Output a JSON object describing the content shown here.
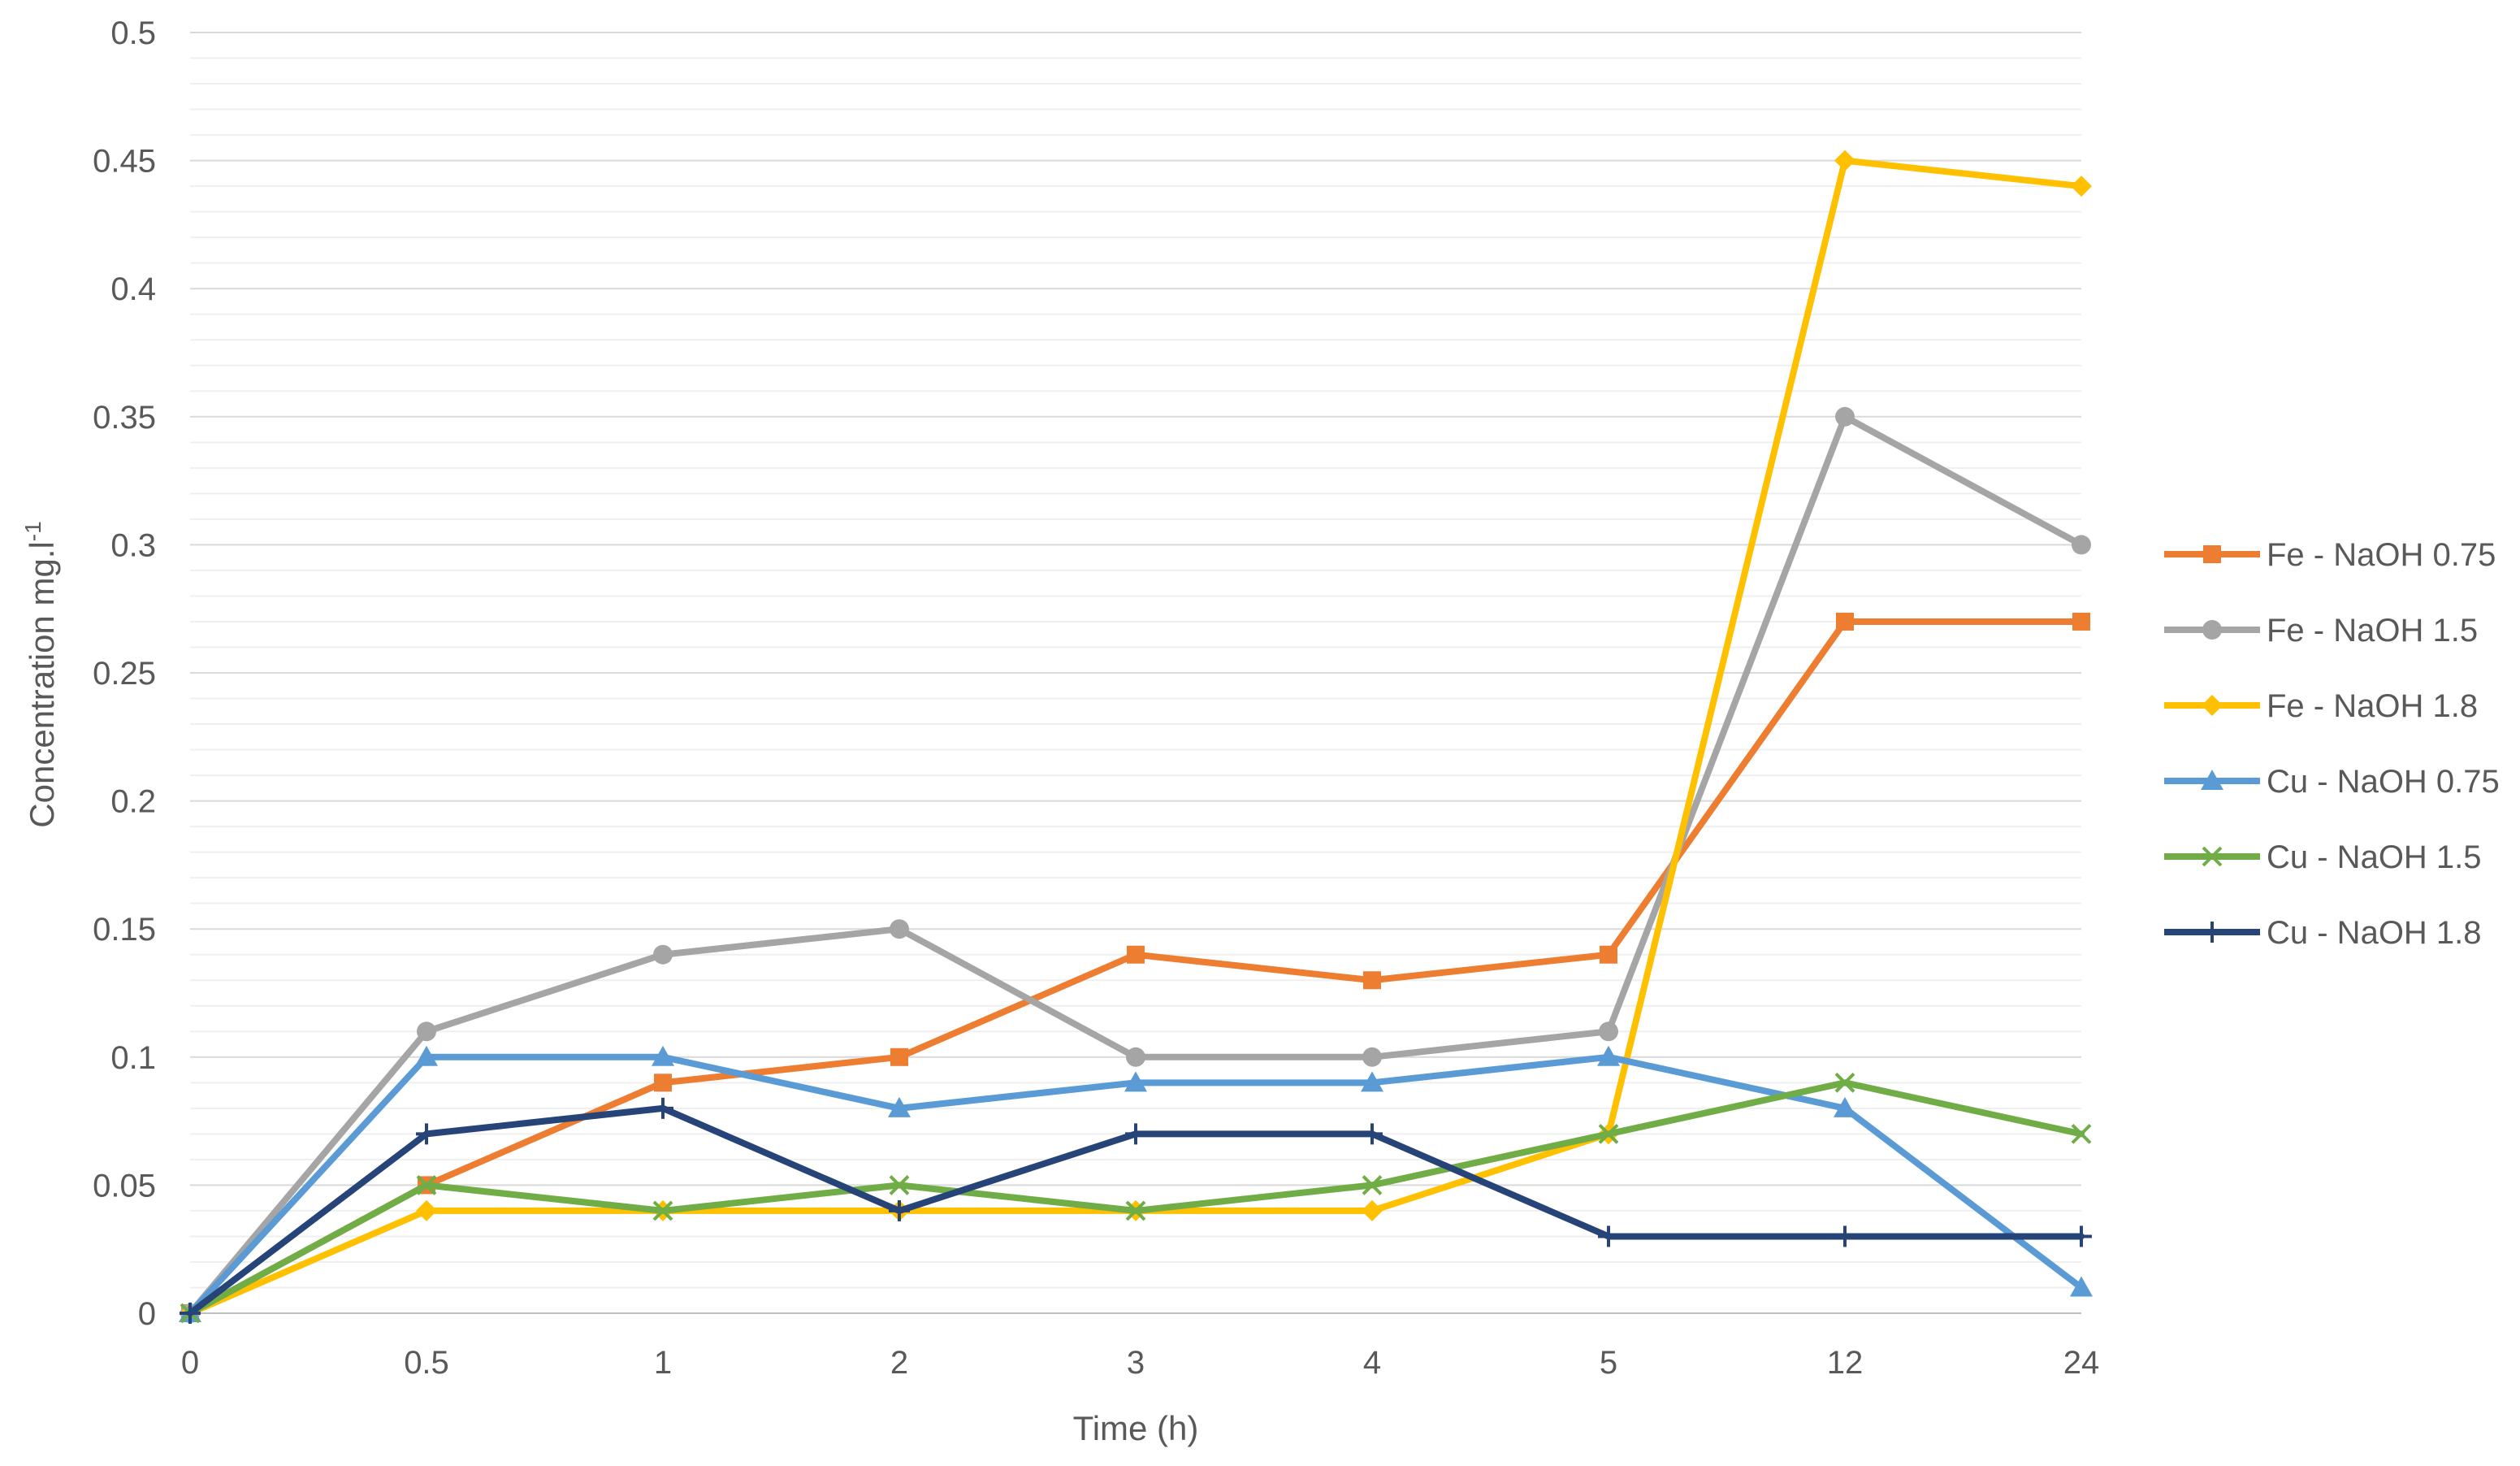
{
  "chart_data": {
    "type": "line",
    "title": "",
    "xlabel": "Time (h)",
    "ylabel": "Concentration mg.l",
    "ylabel_superscript": "-1",
    "categories": [
      "0",
      "0.5",
      "1",
      "2",
      "3",
      "4",
      "5",
      "12",
      "24"
    ],
    "ylim": [
      0,
      0.5
    ],
    "yticks": [
      "0",
      "0.05",
      "0.1",
      "0.15",
      "0.2",
      "0.25",
      "0.3",
      "0.35",
      "0.4",
      "0.45",
      "0.5"
    ],
    "grid": "horizontal major and minor",
    "legend_position": "right",
    "series": [
      {
        "name": "Fe - NaOH 0.75",
        "color": "#ED7D31",
        "marker": "square",
        "values": [
          0,
          0.05,
          0.09,
          0.1,
          0.14,
          0.13,
          0.14,
          0.27,
          0.27
        ]
      },
      {
        "name": "Fe - NaOH 1.5",
        "color": "#A5A5A5",
        "marker": "circle",
        "values": [
          0,
          0.11,
          0.14,
          0.15,
          0.1,
          0.1,
          0.11,
          0.35,
          0.3
        ]
      },
      {
        "name": "Fe - NaOH 1.8",
        "color": "#FFC000",
        "marker": "diamond",
        "values": [
          0,
          0.04,
          0.04,
          0.04,
          0.04,
          0.04,
          0.07,
          0.45,
          0.44
        ]
      },
      {
        "name": "Cu - NaOH 0.75",
        "color": "#5B9BD5",
        "marker": "triangle",
        "values": [
          0,
          0.1,
          0.1,
          0.08,
          0.09,
          0.09,
          0.1,
          0.08,
          0.01
        ]
      },
      {
        "name": "Cu - NaOH 1.5",
        "color": "#70AD47",
        "marker": "x",
        "values": [
          0,
          0.05,
          0.04,
          0.05,
          0.04,
          0.05,
          0.07,
          0.09,
          0.07
        ]
      },
      {
        "name": "Cu - NaOH 1.8",
        "color": "#264478",
        "marker": "plus",
        "values": [
          0,
          0.07,
          0.08,
          0.04,
          0.07,
          0.07,
          0.03,
          0.03,
          0.03
        ]
      }
    ]
  }
}
